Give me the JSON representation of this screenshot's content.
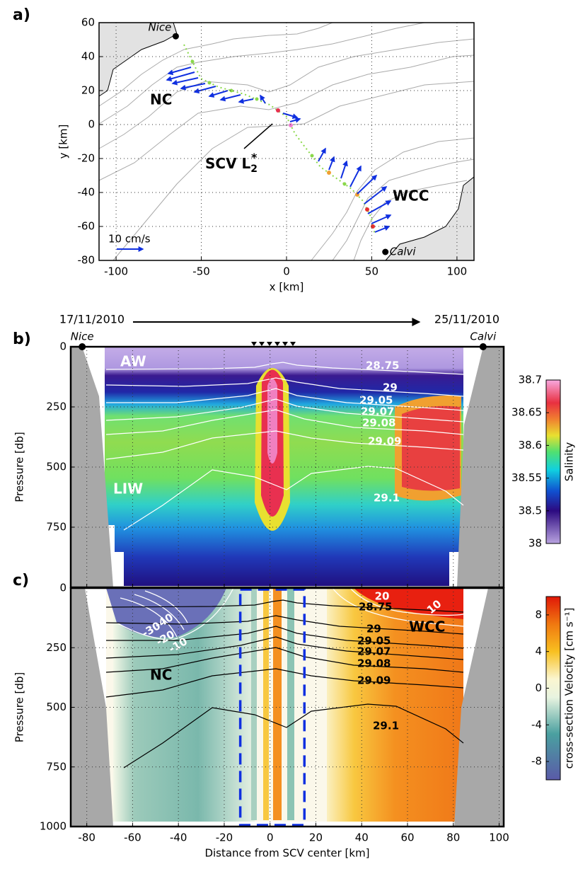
{
  "chart_data": [
    {
      "type": "map",
      "panel_label": "a)",
      "xlabel": "x [km]",
      "ylabel": "y [km]",
      "xlim": [
        -110,
        110
      ],
      "ylim": [
        -80,
        60
      ],
      "xticks": [
        -100,
        -50,
        0,
        50,
        100
      ],
      "yticks": [
        -80,
        -60,
        -40,
        -20,
        0,
        20,
        40,
        60
      ],
      "grid": true,
      "places": [
        {
          "name": "Nice",
          "x": -65,
          "y": 52
        },
        {
          "name": "Calvi",
          "x": 58,
          "y": -75
        }
      ],
      "annotations": [
        "NC",
        "WCC"
      ],
      "eddy_label": {
        "text": "SCV L",
        "subscript": "2",
        "superscript": "*"
      },
      "scale_label": "10 cm/s"
    },
    {
      "type": "contour",
      "panel_label": "b)",
      "ylabel": "Pressure [db]",
      "xlim": [
        -87,
        102
      ],
      "ylim": [
        1000,
        0
      ],
      "xticks": [
        -80,
        -60,
        -40,
        -20,
        0,
        20,
        40,
        60,
        80,
        100
      ],
      "yticks": [
        0,
        250,
        500,
        750
      ],
      "grid": true,
      "dates": [
        "17/11/2010",
        "25/11/2010"
      ],
      "section_ends": [
        {
          "name": "Nice",
          "x": -82
        },
        {
          "name": "Calvi",
          "x": 93
        }
      ],
      "annotations": [
        "AW",
        "LIW"
      ],
      "isopycnals": [
        28.75,
        29,
        29.05,
        29.07,
        29.08,
        29.09,
        29.1
      ],
      "colorbar": {
        "label": "Salinity",
        "ticks": [
          38,
          38.5,
          38.55,
          38.6,
          38.65,
          38.7
        ]
      }
    },
    {
      "type": "contour",
      "panel_label": "c)",
      "xlabel": "Distance from SCV center [km]",
      "ylabel": "Pressure [db]",
      "xlim": [
        -87,
        102
      ],
      "ylim": [
        1000,
        0
      ],
      "xticks": [
        -80,
        -60,
        -40,
        -20,
        0,
        20,
        40,
        60,
        80,
        100
      ],
      "yticks": [
        0,
        250,
        500,
        750,
        1000
      ],
      "grid": true,
      "annotations": [
        "NC",
        "WCC"
      ],
      "isopycnals": [
        28.75,
        29,
        29.05,
        29.07,
        29.08,
        29.09,
        29.1
      ],
      "velocity_contours": [
        -40,
        -30,
        -20,
        -10,
        20,
        10
      ],
      "box_x": [
        -13,
        15
      ],
      "colorbar": {
        "label": "cross-section Velocity [cm s⁻¹]",
        "ticks": [
          -8,
          -4,
          0,
          4,
          8
        ],
        "lim": [
          -10,
          10
        ]
      }
    }
  ]
}
